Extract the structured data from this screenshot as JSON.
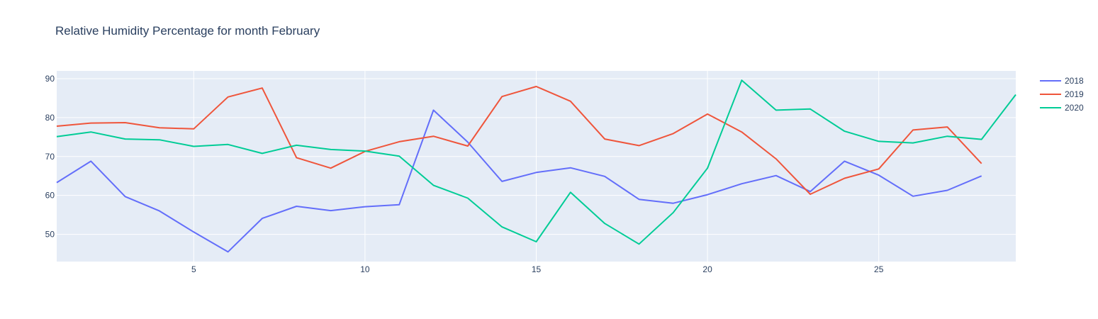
{
  "chart_data": {
    "type": "line",
    "title": "Relative Humidity Percentage for month February",
    "xlabel": "",
    "ylabel": "",
    "xlim": [
      1,
      29
    ],
    "ylim": [
      43,
      92
    ],
    "xticks": [
      5,
      10,
      15,
      20,
      25
    ],
    "yticks": [
      50,
      60,
      70,
      80,
      90
    ],
    "grid": true,
    "legend_position": "top-right",
    "background_color": "#e5ecf6",
    "series": [
      {
        "name": "2018",
        "color": "#636efa",
        "x": [
          1,
          2,
          3,
          4,
          5,
          6,
          7,
          8,
          9,
          10,
          11,
          12,
          13,
          14,
          15,
          16,
          17,
          18,
          19,
          20,
          21,
          22,
          23,
          24,
          25,
          26,
          27,
          28
        ],
        "values": [
          63.3,
          68.8,
          59.7,
          56.0,
          50.6,
          45.5,
          54.1,
          57.2,
          56.1,
          57.1,
          57.6,
          81.9,
          73.7,
          63.6,
          65.9,
          67.1,
          64.9,
          59.0,
          58.0,
          60.2,
          63.0,
          65.1,
          61.0,
          68.8,
          65.2,
          59.8,
          61.3,
          65.0
        ]
      },
      {
        "name": "2019",
        "color": "#ef553b",
        "x": [
          1,
          2,
          3,
          4,
          5,
          6,
          7,
          8,
          9,
          10,
          11,
          12,
          13,
          14,
          15,
          16,
          17,
          18,
          19,
          20,
          21,
          22,
          23,
          24,
          25,
          26,
          27,
          28
        ],
        "values": [
          77.8,
          78.6,
          78.7,
          77.4,
          77.1,
          85.3,
          87.6,
          69.7,
          67.0,
          71.3,
          73.8,
          75.2,
          72.7,
          85.4,
          88.0,
          84.2,
          74.5,
          72.8,
          75.9,
          80.9,
          76.3,
          69.4,
          60.3,
          64.4,
          66.8,
          76.8,
          77.6,
          68.2
        ]
      },
      {
        "name": "2020",
        "color": "#00cc96",
        "x": [
          1,
          2,
          3,
          4,
          5,
          6,
          7,
          8,
          9,
          10,
          11,
          12,
          13,
          14,
          15,
          16,
          17,
          18,
          19,
          20,
          21,
          22,
          23,
          24,
          25,
          26,
          27,
          28,
          29
        ],
        "values": [
          75.1,
          76.3,
          74.5,
          74.3,
          72.6,
          73.1,
          70.8,
          72.9,
          71.8,
          71.4,
          70.1,
          62.6,
          59.3,
          51.9,
          48.1,
          60.8,
          52.8,
          47.5,
          55.6,
          67.0,
          89.6,
          81.9,
          82.2,
          76.5,
          73.9,
          73.5,
          75.2,
          74.4,
          85.9
        ]
      }
    ]
  }
}
